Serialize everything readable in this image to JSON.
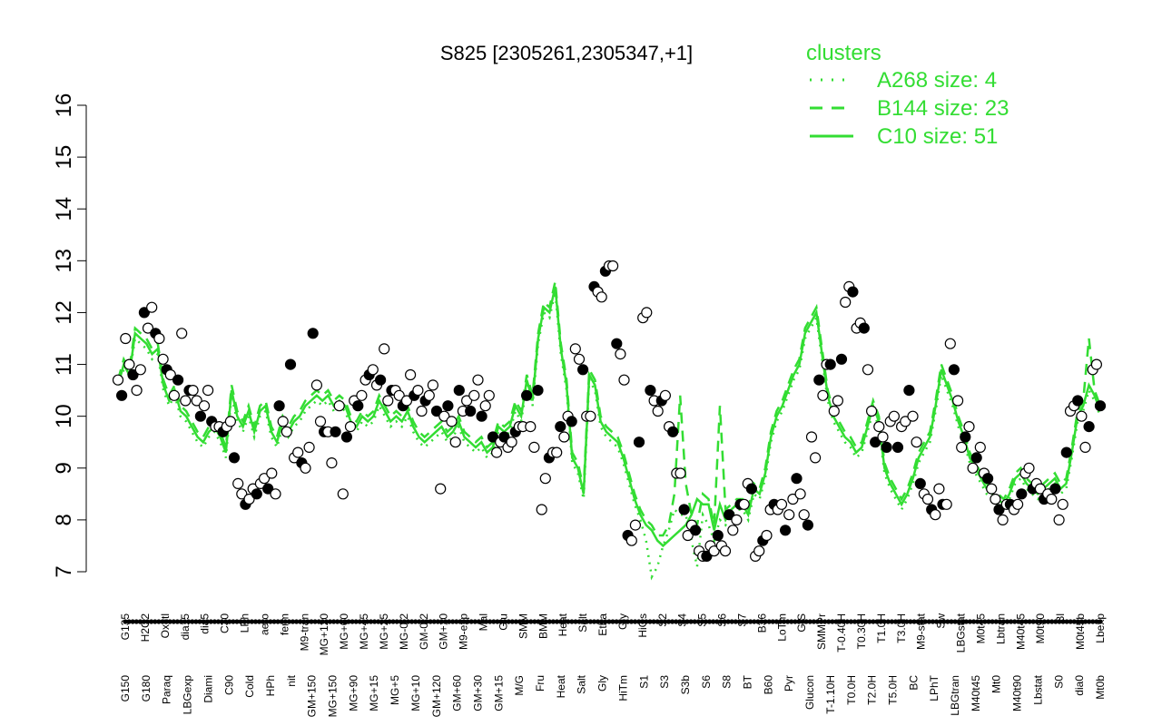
{
  "chart_data": {
    "type": "line",
    "title": "S825 [2305261,2305347,+1]",
    "xlabel": "",
    "ylabel": "",
    "ylim": [
      7,
      16
    ],
    "yticks": [
      7,
      8,
      9,
      10,
      11,
      12,
      13,
      14,
      15,
      16
    ],
    "legend": {
      "title": "clusters",
      "placement": "top-right",
      "entries": [
        {
          "label": "A268 size: 4",
          "style": "dotted"
        },
        {
          "label": "B144 size: 23",
          "style": "dashed"
        },
        {
          "label": "C10 size: 51",
          "style": "solid"
        }
      ]
    },
    "categories_top": [
      "G135",
      "H2O2",
      "Oxctl",
      "dia15",
      "dia5",
      "C30",
      "LPh",
      "aero",
      "ferm",
      "M9-tran",
      "MG+120",
      "MG+60",
      "MG+45",
      "MG+25",
      "MG-0.2",
      "GM-0.2",
      "GM+10",
      "M9-exp",
      "Mal",
      "Glu",
      "SMM",
      "BMM",
      "Heat",
      "Salt",
      "Etha",
      "Gly",
      "HiOs",
      "S2",
      "S4",
      "S5",
      "S6",
      "S7",
      "B36",
      "LoTm",
      "G/S",
      "SMMPr",
      "T-0.40H",
      "T0.30H",
      "T1.0H",
      "T3.0H",
      "M9-stat",
      "Sw",
      "LBGstat",
      "M0t45",
      "Lbtran",
      "M40t45",
      "M0t90",
      "Bl",
      "M0t45b",
      "Lbexp"
    ],
    "categories_bottom": [
      "G150",
      "G180",
      "Paraq",
      "LBGexp",
      "Diami",
      "C90",
      "Cold",
      "HPh",
      "nit",
      "GM+150",
      "MG+150",
      "MG+90",
      "MG+15",
      "MG+5",
      "MG+10",
      "GM+120",
      "GM+60",
      "GM+30",
      "GM+15",
      "M/G",
      "Fru",
      "Heat",
      "Salt",
      "Gly",
      "HiTm",
      "S1",
      "S3",
      "S3b",
      "S6",
      "S8",
      "BT",
      "B60",
      "Pyr",
      "Glucon",
      "T-1.10H",
      "T0.0H",
      "T2.0H",
      "T5.0H",
      "BC",
      "LPhT",
      "LBGtran",
      "M40t45",
      "Mt0",
      "M40t90",
      "Lbstat",
      "S0",
      "dia0",
      "Mt0b"
    ],
    "series": [
      {
        "name": "C10",
        "style": "solid",
        "values": [
          10.6,
          11.0,
          10.8,
          11.6,
          11.5,
          11.4,
          11.2,
          11.3,
          10.6,
          10.3,
          10.5,
          10.1,
          10.0,
          9.8,
          9.6,
          9.5,
          9.7,
          9.8,
          9.6,
          9.3,
          10.5,
          10.0,
          9.8,
          10.1,
          9.7,
          10.1,
          10.2,
          9.7,
          9.5,
          9.9,
          9.7,
          9.9,
          10.0,
          10.2,
          10.3,
          10.4,
          10.3,
          10.4,
          10.2,
          10.3,
          10.2,
          9.9,
          9.8,
          10.0,
          9.9,
          10.0,
          10.3,
          10.1,
          9.9,
          10.0,
          9.9,
          10.1,
          9.8,
          9.6,
          9.5,
          9.6,
          9.7,
          9.8,
          9.6,
          9.7,
          9.9,
          9.6,
          9.5,
          9.4,
          9.5,
          9.3,
          9.4,
          9.8,
          9.7,
          9.8,
          10.2,
          10.0,
          10.7,
          10.3,
          11.5,
          12.1,
          12.0,
          12.5,
          11.3,
          10.6,
          9.2,
          9.0,
          8.5,
          10.8,
          10.6,
          9.9,
          9.7,
          9.6,
          9.5,
          9.2,
          8.8,
          8.4,
          8.1,
          7.9,
          7.8,
          7.6,
          7.5,
          7.6,
          7.7,
          7.8,
          7.9,
          8.1,
          8.4,
          8.3,
          8.3,
          7.8,
          8.3,
          8.0,
          8.2,
          8.3,
          8.3,
          8.1,
          8.6,
          8.5,
          8.9,
          9.6,
          10.0,
          10.2,
          10.5,
          10.8,
          11.0,
          11.6,
          11.8,
          12.0,
          11.2,
          10.4,
          10.0,
          9.8,
          9.6,
          9.5,
          9.3,
          9.4,
          9.8,
          10.2,
          9.9,
          9.0,
          8.7,
          8.5,
          8.3,
          8.5,
          8.8,
          9.2,
          9.4,
          9.6,
          10.2,
          10.9,
          10.6,
          10.3,
          9.9,
          9.6,
          9.2,
          9.0,
          8.8,
          8.6,
          8.5,
          8.4,
          8.3,
          8.5,
          8.8,
          8.9,
          8.7,
          8.6,
          8.5,
          8.6,
          8.7,
          8.8,
          8.6,
          8.7,
          9.3,
          10.0,
          10.2,
          10.6,
          10.4,
          10.1
        ]
      },
      {
        "name": "B144",
        "style": "dashed",
        "values": [
          10.7,
          11.1,
          10.9,
          11.7,
          11.6,
          11.5,
          11.3,
          11.4,
          10.7,
          10.4,
          10.6,
          10.2,
          10.1,
          9.9,
          9.7,
          9.6,
          9.8,
          9.9,
          9.7,
          9.4,
          10.6,
          10.1,
          9.9,
          10.2,
          9.8,
          10.2,
          10.3,
          9.8,
          9.6,
          10.0,
          9.8,
          10.0,
          10.1,
          10.3,
          10.4,
          10.5,
          10.4,
          10.5,
          10.3,
          10.4,
          10.3,
          10.0,
          9.9,
          10.1,
          10.0,
          10.1,
          10.4,
          10.2,
          10.0,
          10.1,
          10.0,
          10.2,
          9.9,
          9.7,
          9.6,
          9.7,
          9.8,
          9.9,
          9.7,
          9.8,
          10.0,
          9.7,
          9.6,
          9.5,
          9.6,
          9.4,
          9.5,
          9.9,
          9.8,
          9.9,
          10.3,
          10.1,
          10.8,
          10.4,
          11.6,
          12.2,
          12.1,
          12.6,
          11.4,
          10.7,
          9.3,
          9.1,
          8.6,
          10.9,
          10.7,
          10.0,
          9.8,
          9.7,
          9.6,
          9.3,
          8.9,
          8.5,
          8.2,
          8.0,
          7.9,
          7.7,
          7.7,
          7.9,
          8.5,
          10.4,
          8.7,
          8.1,
          7.9,
          8.5,
          8.4,
          7.9,
          10.2,
          8.2,
          8.3,
          8.4,
          8.4,
          8.2,
          8.7,
          8.6,
          9.0,
          9.7,
          10.1,
          10.3,
          10.6,
          10.9,
          11.1,
          11.7,
          11.9,
          12.1,
          11.3,
          10.5,
          10.1,
          9.9,
          9.7,
          9.6,
          9.4,
          9.5,
          9.9,
          10.3,
          10.0,
          9.1,
          8.8,
          8.6,
          8.4,
          8.6,
          8.9,
          9.3,
          9.5,
          9.7,
          10.3,
          11.0,
          10.7,
          10.4,
          10.0,
          9.7,
          9.3,
          9.1,
          8.9,
          8.7,
          8.6,
          8.5,
          8.4,
          8.6,
          8.9,
          9.0,
          8.8,
          8.7,
          8.6,
          8.7,
          8.8,
          8.9,
          8.7,
          8.8,
          9.4,
          10.1,
          10.3,
          11.5,
          10.5,
          10.2
        ]
      },
      {
        "name": "A268",
        "style": "dotted",
        "values": [
          10.6,
          10.9,
          10.8,
          11.5,
          11.4,
          11.3,
          11.1,
          11.2,
          10.5,
          10.2,
          10.4,
          10.0,
          9.9,
          9.7,
          9.5,
          9.4,
          9.6,
          9.7,
          9.5,
          9.2,
          10.4,
          9.9,
          9.7,
          10.0,
          9.6,
          10.0,
          10.1,
          9.6,
          9.4,
          9.8,
          9.6,
          9.8,
          9.9,
          10.1,
          10.2,
          10.3,
          10.2,
          10.3,
          10.1,
          10.2,
          10.1,
          9.8,
          9.7,
          9.9,
          9.8,
          9.9,
          10.2,
          10.0,
          9.8,
          9.9,
          9.8,
          10.0,
          9.7,
          9.5,
          9.4,
          9.5,
          9.6,
          9.7,
          9.5,
          9.6,
          9.8,
          9.5,
          9.4,
          9.3,
          9.4,
          9.2,
          9.3,
          9.7,
          9.6,
          9.7,
          10.1,
          9.9,
          10.6,
          10.2,
          11.4,
          12.0,
          11.9,
          12.4,
          11.2,
          10.5,
          9.1,
          8.9,
          8.4,
          10.7,
          10.5,
          9.8,
          9.6,
          9.5,
          9.4,
          9.1,
          8.7,
          8.3,
          8.0,
          7.6,
          6.9,
          7.1,
          7.5,
          7.8,
          8.2,
          8.1,
          8.1,
          7.6,
          7.1,
          8.1,
          7.9,
          7.6,
          8.0,
          7.9,
          8.1,
          8.2,
          8.2,
          8.0,
          8.5,
          8.4,
          8.8,
          9.5,
          9.9,
          10.1,
          10.4,
          10.7,
          10.9,
          11.5,
          11.7,
          11.9,
          11.1,
          10.3,
          9.9,
          9.7,
          9.5,
          9.4,
          9.2,
          9.3,
          9.7,
          10.1,
          9.8,
          8.9,
          8.6,
          8.4,
          8.2,
          8.4,
          8.7,
          9.1,
          9.3,
          9.5,
          10.1,
          10.8,
          10.5,
          10.2,
          9.8,
          9.5,
          9.1,
          8.9,
          8.7,
          8.5,
          8.4,
          8.3,
          8.2,
          8.4,
          8.7,
          8.8,
          8.6,
          8.5,
          8.4,
          8.5,
          8.6,
          8.7,
          8.5,
          8.6,
          9.2,
          9.9,
          10.1,
          10.5,
          10.3,
          10.0
        ]
      }
    ],
    "points": [
      10.7,
      10.4,
      11.5,
      11.0,
      10.8,
      10.5,
      10.9,
      12.0,
      11.7,
      12.1,
      11.6,
      11.5,
      11.1,
      10.9,
      10.8,
      10.4,
      10.7,
      11.6,
      10.3,
      10.5,
      10.5,
      10.3,
      10.0,
      10.2,
      10.5,
      9.9,
      9.8,
      9.8,
      9.7,
      9.8,
      9.9,
      9.2,
      8.7,
      8.5,
      8.3,
      8.4,
      8.6,
      8.5,
      8.7,
      8.8,
      8.6,
      8.9,
      8.5,
      10.2,
      9.9,
      9.7,
      11.0,
      9.2,
      9.3,
      9.1,
      9.0,
      9.4,
      11.6,
      10.6,
      9.9,
      9.7,
      9.7,
      9.1,
      9.7,
      10.2,
      8.5,
      9.6,
      9.8,
      10.3,
      10.2,
      10.4,
      10.7,
      10.8,
      10.9,
      10.6,
      10.7,
      11.3,
      10.3,
      10.5,
      10.5,
      10.4,
      10.2,
      10.3,
      10.8,
      10.4,
      10.5,
      10.1,
      10.3,
      10.4,
      10.6,
      10.1,
      8.6,
      10.0,
      10.2,
      9.9,
      9.5,
      10.5,
      10.1,
      10.3,
      10.1,
      10.4,
      10.7,
      10.0,
      10.2,
      10.4,
      9.6,
      9.3,
      9.5,
      9.6,
      9.4,
      9.5,
      9.7,
      9.8,
      9.8,
      10.4,
      9.8,
      9.4,
      10.5,
      8.2,
      8.8,
      9.2,
      9.3,
      9.3,
      9.8,
      9.6,
      10.0,
      9.9,
      11.3,
      11.1,
      10.9,
      10.0,
      10.0,
      12.5,
      12.4,
      12.3,
      12.8,
      12.9,
      12.9,
      11.4,
      11.2,
      10.7,
      7.7,
      7.6,
      7.9,
      9.5,
      11.9,
      12.0,
      10.5,
      10.3,
      10.1,
      10.3,
      10.4,
      9.8,
      9.7,
      8.9,
      8.9,
      8.2,
      7.7,
      7.9,
      7.8,
      7.4,
      7.3,
      7.3,
      7.5,
      7.4,
      7.7,
      7.5,
      7.4,
      8.1,
      7.8,
      8.0,
      8.3,
      8.3,
      8.7,
      8.6,
      7.3,
      7.4,
      7.6,
      7.7,
      8.2,
      8.3,
      8.2,
      8.3,
      7.8,
      8.1,
      8.4,
      8.8,
      8.5,
      8.1,
      7.9,
      9.6,
      9.2,
      10.7,
      10.4,
      11.0,
      11.0,
      10.1,
      10.3,
      11.1,
      12.2,
      12.5,
      12.4,
      11.7,
      11.8,
      11.7,
      10.9,
      10.1,
      9.5,
      9.8,
      9.6,
      9.4,
      9.9,
      10.0,
      9.4,
      9.8,
      9.9,
      10.5,
      10.0,
      9.5,
      8.7,
      8.5,
      8.4,
      8.2,
      8.1,
      8.6,
      8.3,
      8.3,
      11.4,
      10.9,
      10.3,
      9.4,
      9.6,
      9.8,
      9.0,
      9.2,
      9.4,
      8.9,
      8.8,
      8.6,
      8.4,
      8.2,
      8.0,
      8.3,
      8.3,
      8.2,
      8.3,
      8.5,
      8.9,
      9.0,
      8.6,
      8.7,
      8.6,
      8.4,
      8.5,
      8.4,
      8.6,
      8.0,
      8.3,
      9.3,
      10.1,
      10.2,
      10.3,
      10.0,
      9.4,
      9.8,
      10.9,
      11.0,
      10.2
    ]
  }
}
